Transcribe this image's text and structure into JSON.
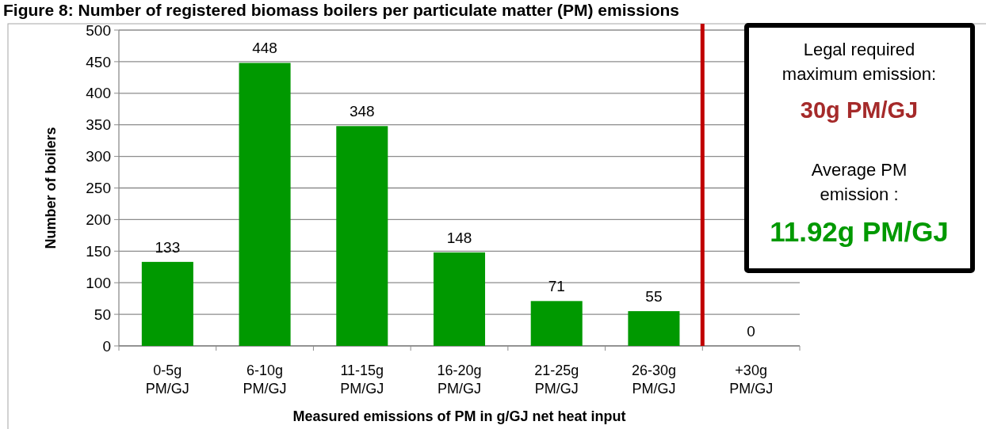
{
  "chart_data": {
    "type": "bar",
    "title": "Figure 8: Number of registered biomass boilers per particulate matter (PM) emissions",
    "xlabel": "Measured emissions of PM in g/GJ net heat input",
    "ylabel": "Number of boilers",
    "categories": [
      "0-5g PM/GJ",
      "6-10g PM/GJ",
      "11-15g PM/GJ",
      "16-20g PM/GJ",
      "21-25g PM/GJ",
      "26-30g PM/GJ",
      "+30g PM/GJ"
    ],
    "values": [
      133,
      448,
      348,
      148,
      71,
      55,
      0
    ],
    "color": "#009900",
    "ylim": [
      0,
      500
    ],
    "yticks": [
      0,
      50,
      100,
      150,
      200,
      250,
      300,
      350,
      400,
      450,
      500
    ],
    "grid": "y",
    "data_labels": true,
    "ref_lines": [
      {
        "axis": "x",
        "value": "+30g PM/GJ",
        "color": "#c00000"
      }
    ],
    "annotations": [
      "Legal required maximum emission:",
      "30g PM/GJ",
      "Average PM emission :",
      "11.92g PM/GJ"
    ]
  }
}
